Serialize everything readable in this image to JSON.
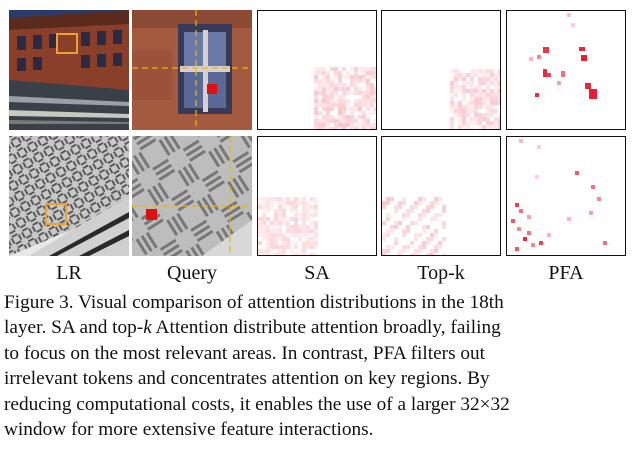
{
  "columns": [
    "LR",
    "Query",
    "SA",
    "Top-k",
    "PFA"
  ],
  "caption": {
    "figure_label": "Figure 3.",
    "lines": [
      [
        "Figure 3.  Visual comparison of attention distributions in the 18th",
        "",
        ""
      ],
      [
        "layer.  SA and top-",
        "k",
        " Attention distribute attention broadly, failing"
      ],
      [
        "to focus on the most relevant areas.  In contrast, PFA filters out",
        "",
        ""
      ],
      [
        "irrelevant tokens and concentrates attention on key regions.  By",
        "",
        ""
      ],
      [
        "reducing computational costs, it enables the use of a larger 32×32",
        "",
        ""
      ],
      [
        "window for more extensive feature interactions.",
        "",
        ""
      ]
    ]
  },
  "colors": {
    "highlight_box": "#f0a030",
    "query_marker": "#e01010",
    "crosshair": "#f0b400",
    "attention": "#e8102a"
  }
}
